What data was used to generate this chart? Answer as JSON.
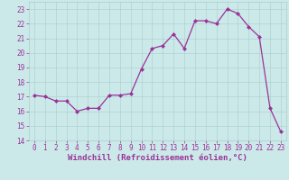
{
  "x": [
    0,
    1,
    2,
    3,
    4,
    5,
    6,
    7,
    8,
    9,
    10,
    11,
    12,
    13,
    14,
    15,
    16,
    17,
    18,
    19,
    20,
    21,
    22,
    23
  ],
  "y": [
    17.1,
    17.0,
    16.7,
    16.7,
    16.0,
    16.2,
    16.2,
    17.1,
    17.1,
    17.2,
    18.9,
    20.3,
    20.5,
    21.3,
    20.3,
    22.2,
    22.2,
    22.0,
    23.0,
    22.7,
    21.8,
    21.1,
    16.2,
    14.6
  ],
  "line_color": "#993399",
  "marker": "D",
  "marker_size": 2.0,
  "linewidth": 0.9,
  "background_color": "#cce9e9",
  "grid_color": "#aacccc",
  "tick_color": "#993399",
  "xlabel": "Windchill (Refroidissement éolien,°C)",
  "xlabel_color": "#993399",
  "xlim": [
    -0.5,
    23.5
  ],
  "ylim": [
    14,
    23.5
  ],
  "yticks": [
    14,
    15,
    16,
    17,
    18,
    19,
    20,
    21,
    22,
    23
  ],
  "xticks": [
    0,
    1,
    2,
    3,
    4,
    5,
    6,
    7,
    8,
    9,
    10,
    11,
    12,
    13,
    14,
    15,
    16,
    17,
    18,
    19,
    20,
    21,
    22,
    23
  ],
  "tick_label_fontsize": 5.5,
  "xlabel_fontsize": 6.5
}
